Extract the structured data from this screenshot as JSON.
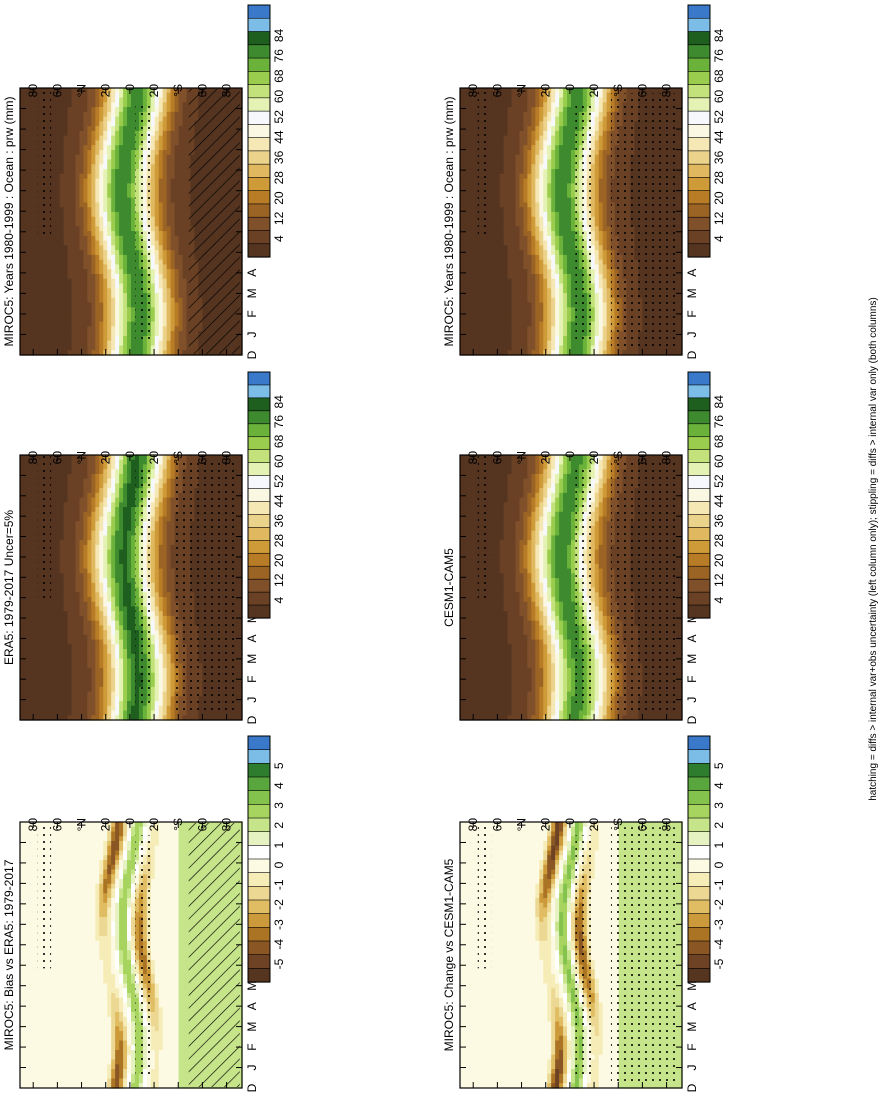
{
  "figure": {
    "footnote": "hatching = diffs > internal var+obs uncertainty (left column only); stippling = diffs > internal var only (both columns)"
  },
  "palettes": {
    "absolute": [
      "#3a79c9",
      "#7bbde6",
      "#1e5e1e",
      "#3e8a2e",
      "#6ab23a",
      "#9acd4e",
      "#c4e27c",
      "#e4f2b4",
      "#f7f8fb",
      "#faf7e2",
      "#f5e8b4",
      "#ecd38c",
      "#e0b860",
      "#cf9a38",
      "#b87c26",
      "#9c6424",
      "#80502a",
      "#6a4124",
      "#553420"
    ],
    "difference": [
      "#3a79c9",
      "#7bbde6",
      "#2e7d2e",
      "#5aa63e",
      "#84c24e",
      "#a6d45e",
      "#c6e48a",
      "#e6f2c2",
      "#ffffff",
      "#fdfae4",
      "#f5ecb8",
      "#ecd892",
      "#e0bc62",
      "#cc9a3a",
      "#aa7424",
      "#8a5624",
      "#6e4224",
      "#553420"
    ],
    "swatch_colors": {
      "bare_stripes": [
        "#7a4e2c",
        "#8c5e34",
        "#a06c3c",
        "#b58a40",
        "#cc9a3a",
        "#e0b860",
        "#ecd38c",
        "#f5e8b4",
        "#faf7e2",
        "#f7f8fb",
        "#c4e27c",
        "#7ebd4b"
      ]
    }
  },
  "chart_data": [
    {
      "panel": "top-left",
      "type": "heatmap",
      "title": "MIROC5: Years 1980-1999 : Ocean : prw (mm)",
      "x_field": "latitude",
      "x_ticklabels": [
        "80",
        "60",
        "°N",
        "20",
        "0",
        "20",
        "°S",
        "60",
        "80"
      ],
      "y_field": "month",
      "y_ticklabels": [
        "D",
        "J",
        "F",
        "M",
        "A",
        "M",
        "J",
        "J",
        "A",
        "S",
        "O",
        "N",
        "D",
        "J"
      ],
      "colorbar": {
        "labels": [
          "84",
          "76",
          "68",
          "60",
          "52",
          "44",
          "36",
          "28",
          "20",
          "12",
          "4"
        ],
        "palette": "absolute"
      },
      "overlays": [
        "stippling",
        "hatching"
      ]
    },
    {
      "panel": "top-right",
      "type": "heatmap",
      "title": "MIROC5: Years 1980-1999 : Ocean : prw (mm)",
      "x_field": "latitude",
      "x_ticklabels": [
        "80",
        "60",
        "°N",
        "20",
        "0",
        "20",
        "°S",
        "60",
        "80"
      ],
      "y_field": "month",
      "y_ticklabels": [
        "D",
        "J",
        "F",
        "M",
        "A",
        "M",
        "J",
        "J",
        "A",
        "S",
        "O",
        "N",
        "D",
        "J"
      ],
      "colorbar": {
        "labels": [
          "84",
          "76",
          "68",
          "60",
          "52",
          "44",
          "36",
          "28",
          "20",
          "12",
          "4"
        ],
        "palette": "absolute"
      },
      "overlays": [
        "stippling"
      ]
    },
    {
      "panel": "middle-left",
      "type": "heatmap",
      "title": "ERA5: 1979-2017 Uncer=5%",
      "x_field": "latitude",
      "x_ticklabels": [
        "80",
        "60",
        "°N",
        "20",
        "0",
        "20",
        "°S",
        "60",
        "80"
      ],
      "y_field": "month",
      "y_ticklabels": [
        "D",
        "J",
        "F",
        "M",
        "A",
        "M",
        "J",
        "J",
        "A",
        "S",
        "O",
        "N",
        "D",
        "J"
      ],
      "colorbar": {
        "labels": [
          "84",
          "76",
          "68",
          "60",
          "52",
          "44",
          "36",
          "28",
          "20",
          "12",
          "4"
        ],
        "palette": "absolute"
      },
      "overlays": [
        "stippling"
      ]
    },
    {
      "panel": "middle-right",
      "type": "heatmap",
      "title": "CESM1-CAM5",
      "x_field": "latitude",
      "x_ticklabels": [
        "80",
        "60",
        "°N",
        "20",
        "0",
        "20",
        "°S",
        "60",
        "80"
      ],
      "y_field": "month",
      "y_ticklabels": [
        "D",
        "J",
        "F",
        "M",
        "A",
        "M",
        "J",
        "J",
        "A",
        "S",
        "O",
        "N",
        "D",
        "J"
      ],
      "colorbar": {
        "labels": [
          "84",
          "76",
          "68",
          "60",
          "52",
          "44",
          "36",
          "28",
          "20",
          "12",
          "4"
        ],
        "palette": "absolute"
      },
      "overlays": [
        "stippling"
      ]
    },
    {
      "panel": "bottom-left",
      "type": "heatmap",
      "title": "MIROC5: Bias vs ERA5: 1979-2017",
      "x_field": "latitude",
      "x_ticklabels": [
        "80",
        "60",
        "°N",
        "20",
        "0",
        "20",
        "°S",
        "60",
        "80"
      ],
      "y_field": "month",
      "y_ticklabels": [
        "D",
        "J",
        "F",
        "M",
        "A",
        "M",
        "J",
        "J",
        "A",
        "S",
        "O",
        "N",
        "D",
        "J"
      ],
      "colorbar": {
        "labels": [
          "5",
          "4",
          "3",
          "2",
          "1",
          "0",
          "-1",
          "-2",
          "-3",
          "-4",
          "-5"
        ],
        "palette": "difference"
      },
      "overlays": [
        "stippling",
        "hatching"
      ]
    },
    {
      "panel": "bottom-right",
      "type": "heatmap",
      "title": "MIROC5: Change vs CESM1-CAM5",
      "x_field": "latitude",
      "x_ticklabels": [
        "80",
        "60",
        "°N",
        "20",
        "0",
        "20",
        "°S",
        "60",
        "80"
      ],
      "y_field": "month",
      "y_ticklabels": [
        "D",
        "J",
        "F",
        "M",
        "A",
        "M",
        "J",
        "J",
        "A",
        "S",
        "O",
        "N",
        "D",
        "J"
      ],
      "colorbar": {
        "labels": [
          "5",
          "4",
          "3",
          "2",
          "1",
          "0",
          "-1",
          "-2",
          "-3",
          "-4",
          "-5"
        ],
        "palette": "difference"
      },
      "overlays": [
        "stippling"
      ]
    }
  ]
}
